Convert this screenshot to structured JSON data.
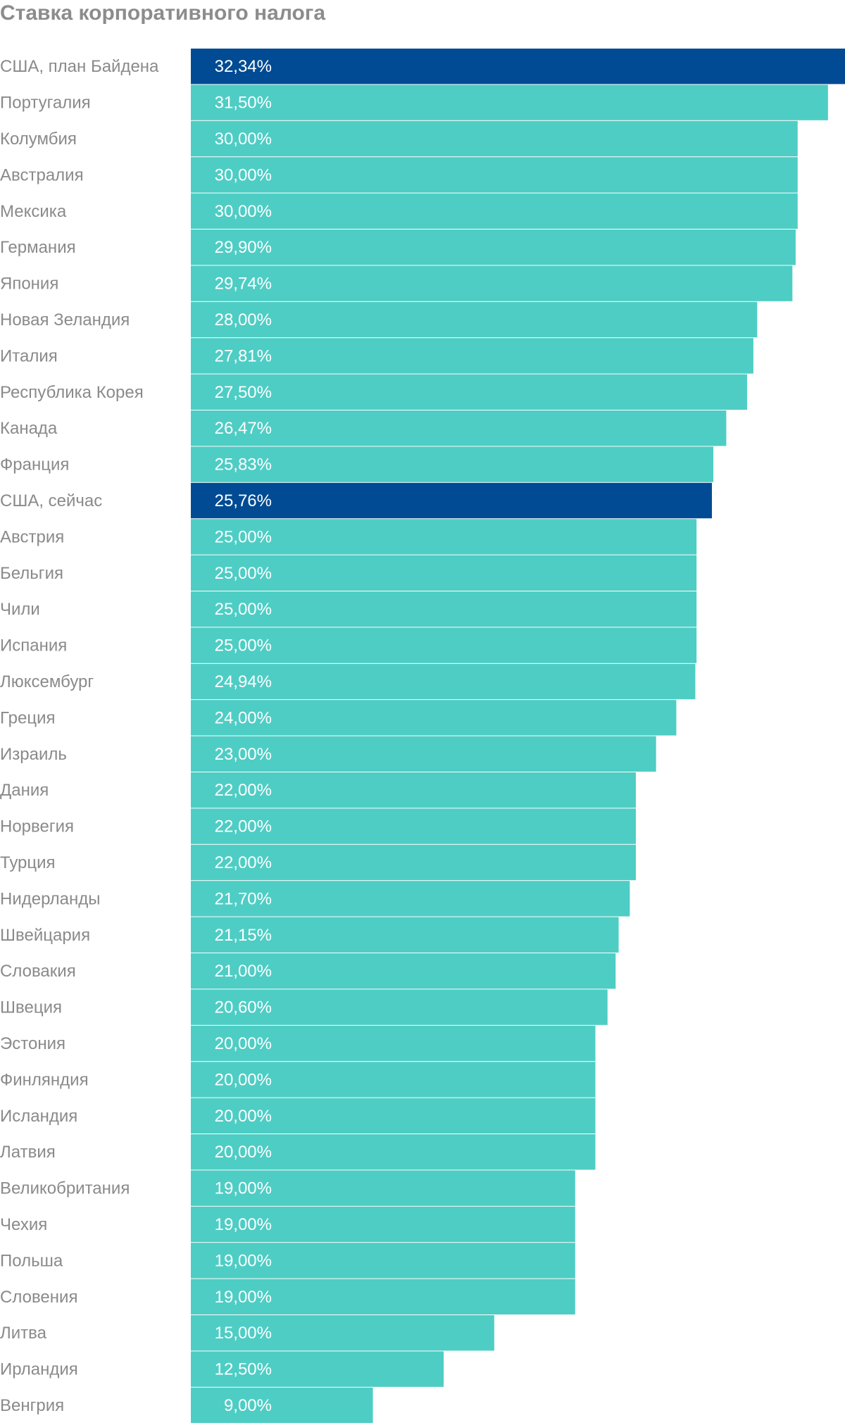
{
  "chart_data": {
    "type": "bar",
    "orientation": "horizontal",
    "title": "Ставка корпоративного налога",
    "xlabel": "",
    "ylabel": "",
    "xlim": [
      0,
      32.34
    ],
    "grid": false,
    "legend": "none",
    "colors": {
      "default": "#4ecdc4",
      "highlight": "#004b93",
      "label": "#8a8a8a",
      "value_label": "#ffffff",
      "separator": "#ffffff"
    },
    "categories": [
      "США, план Байдена",
      "Португалия",
      "Колумбия",
      "Австралия",
      "Мексика",
      "Германия",
      "Япония",
      "Новая Зеландия",
      "Италия",
      "Республика Корея",
      "Канада",
      "Франция",
      "США, сейчас",
      "Австрия",
      "Бельгия",
      "Чили",
      "Испания",
      "Люксембург",
      "Греция",
      "Израиль",
      "Дания",
      "Норвегия",
      "Турция",
      "Нидерланды",
      "Швейцария",
      "Словакия",
      "Швеция",
      "Эстония",
      "Финляндия",
      "Исландия",
      "Латвия",
      "Великобритания",
      "Чехия",
      "Польша",
      "Словения",
      "Литва",
      "Ирландия",
      "Венгрия"
    ],
    "values": [
      32.34,
      31.5,
      30.0,
      30.0,
      30.0,
      29.9,
      29.74,
      28.0,
      27.81,
      27.5,
      26.47,
      25.83,
      25.76,
      25.0,
      25.0,
      25.0,
      25.0,
      24.94,
      24.0,
      23.0,
      22.0,
      22.0,
      22.0,
      21.7,
      21.15,
      21.0,
      20.6,
      20.0,
      20.0,
      20.0,
      20.0,
      19.0,
      19.0,
      19.0,
      19.0,
      15.0,
      12.5,
      9.0
    ],
    "value_labels": [
      "32,34%",
      "31,50%",
      "30,00%",
      "30,00%",
      "30,00%",
      "29,90%",
      "29,74%",
      "28,00%",
      "27,81%",
      "27,50%",
      "26,47%",
      "25,83%",
      "25,76%",
      "25,00%",
      "25,00%",
      "25,00%",
      "25,00%",
      "24,94%",
      "24,00%",
      "23,00%",
      "22,00%",
      "22,00%",
      "22,00%",
      "21,70%",
      "21,15%",
      "21,00%",
      "20,60%",
      "20,00%",
      "20,00%",
      "20,00%",
      "20,00%",
      "19,00%",
      "19,00%",
      "19,00%",
      "19,00%",
      "15,00%",
      "12,50%",
      "9,00%"
    ],
    "highlighted": [
      "США, план Байдена",
      "США, сейчас"
    ]
  }
}
